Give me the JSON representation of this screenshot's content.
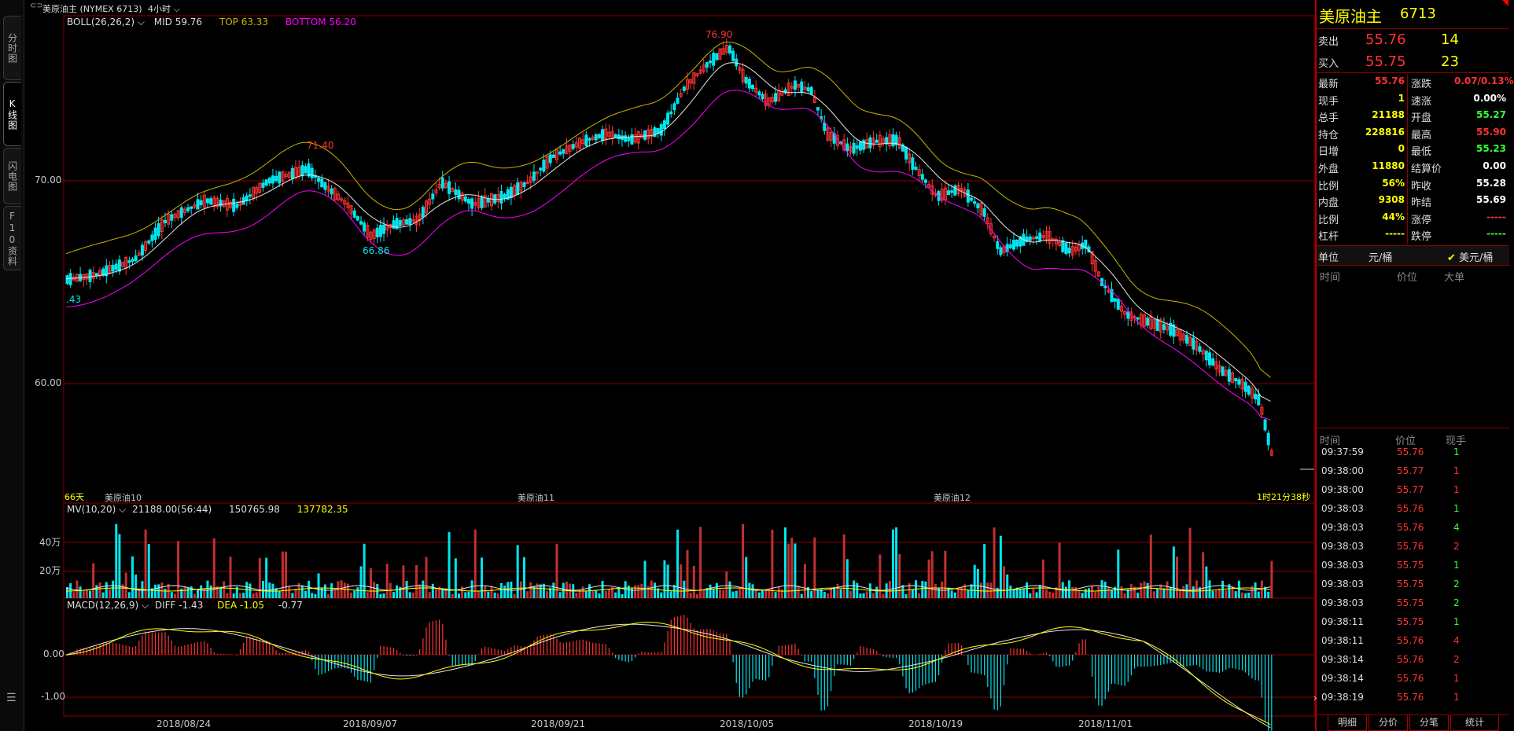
{
  "window": {
    "title": "美原油主 (NYMEX 6713)",
    "period": "4小时"
  },
  "left_tabs": [
    "分时图",
    "K线图",
    "闪电图",
    "F10资料"
  ],
  "active_tab": "K线图",
  "indicators": {
    "boll": {
      "label": "BOLL(26,26,2)",
      "mid": "MID 59.76",
      "top": "TOP 63.33",
      "bottom": "BOTTOM 56.20"
    },
    "mv": {
      "label": "MV(10,20)",
      "v1": "21188.00(56:44)",
      "v2": "150765.98",
      "v3": "137782.35"
    },
    "macd": {
      "label": "MACD(12,26,9)",
      "diff": "DIFF -1.43",
      "dea": "DEA -1.05",
      "macd": "-0.77"
    }
  },
  "price_axis": [
    "70.00",
    "60.00"
  ],
  "volume_axis": [
    "40万",
    "20万"
  ],
  "macd_axis": [
    "0.00",
    "-1.00"
  ],
  "date_axis": [
    "2018/08/24",
    "2018/09/07",
    "2018/09/21",
    "2018/10/05",
    "2018/10/19",
    "2018/11/01"
  ],
  "contract_labels": [
    "美原油10",
    "美原油11",
    "美原油12"
  ],
  "annotations": {
    "high": "76.90",
    "high2": "71.40",
    "low": "66.86",
    "left_value": ".43",
    "days": "66天",
    "countdown": "1时21分38秒"
  },
  "colors": {
    "up": "#ff3333",
    "down": "#00e5ee",
    "boll_top": "#c8b400",
    "boll_bottom": "#ff00ff",
    "mid": "#e6e6e6",
    "grid": "#8b0000"
  },
  "quote": {
    "name": "美原油主",
    "code": "6713",
    "ask_label": "卖出",
    "ask_price": "55.76",
    "ask_vol": "14",
    "bid_label": "买入",
    "bid_price": "55.75",
    "bid_vol": "23",
    "rows": [
      {
        "l1": "最新",
        "v1": "55.76",
        "c1": "#ff3333",
        "l2": "涨跌",
        "v2": "0.07/0.13%",
        "c2": "#ff3333"
      },
      {
        "l1": "现手",
        "v1": "1",
        "c1": "#ffff00",
        "l2": "速涨",
        "v2": "0.00%",
        "c2": "#ffffff"
      },
      {
        "l1": "总手",
        "v1": "21188",
        "c1": "#ffff00",
        "l2": "开盘",
        "v2": "55.27",
        "c2": "#33ff33"
      },
      {
        "l1": "持仓",
        "v1": "228816",
        "c1": "#ffff00",
        "l2": "最高",
        "v2": "55.90",
        "c2": "#ff3333"
      },
      {
        "l1": "日增",
        "v1": "0",
        "c1": "#ffff00",
        "l2": "最低",
        "v2": "55.23",
        "c2": "#33ff33"
      },
      {
        "l1": "外盘",
        "v1": "11880",
        "c1": "#ffff00",
        "l2": "结算价",
        "v2": "0.00",
        "c2": "#ffffff"
      },
      {
        "l1": "比例",
        "v1": "56%",
        "c1": "#ffff00",
        "l2": "昨收",
        "v2": "55.28",
        "c2": "#ffffff"
      },
      {
        "l1": "内盘",
        "v1": "9308",
        "c1": "#ffff00",
        "l2": "昨结",
        "v2": "55.69",
        "c2": "#ffffff"
      },
      {
        "l1": "比例",
        "v1": "44%",
        "c1": "#ffff00",
        "l2": "涨停",
        "v2": "-----",
        "c2": "#ff3333"
      },
      {
        "l1": "杠杆",
        "v1": "-----",
        "c1": "#ffff00",
        "l2": "跌停",
        "v2": "-----",
        "c2": "#33ff33"
      }
    ],
    "unit_label": "单位",
    "unit_value": "元/桶",
    "unit_option": "美元/桶",
    "big_header": [
      "时间",
      "价位",
      "大单"
    ],
    "tick_header": [
      "时间",
      "价位",
      "现手"
    ],
    "ticks": [
      {
        "t": "09:37:59",
        "p": "55.76",
        "v": "1",
        "vc": "#33ff33"
      },
      {
        "t": "09:38:00",
        "p": "55.77",
        "v": "1",
        "vc": "#ff3333"
      },
      {
        "t": "09:38:00",
        "p": "55.77",
        "v": "1",
        "vc": "#ff3333"
      },
      {
        "t": "09:38:03",
        "p": "55.76",
        "v": "1",
        "vc": "#33ff33"
      },
      {
        "t": "09:38:03",
        "p": "55.76",
        "v": "4",
        "vc": "#33ff33"
      },
      {
        "t": "09:38:03",
        "p": "55.76",
        "v": "2",
        "vc": "#ff3333"
      },
      {
        "t": "09:38:03",
        "p": "55.75",
        "v": "1",
        "vc": "#33ff33"
      },
      {
        "t": "09:38:03",
        "p": "55.75",
        "v": "2",
        "vc": "#33ff33"
      },
      {
        "t": "09:38:03",
        "p": "55.75",
        "v": "2",
        "vc": "#33ff33"
      },
      {
        "t": "09:38:11",
        "p": "55.75",
        "v": "1",
        "vc": "#33ff33"
      },
      {
        "t": "09:38:11",
        "p": "55.76",
        "v": "4",
        "vc": "#ff3333"
      },
      {
        "t": "09:38:14",
        "p": "55.76",
        "v": "2",
        "vc": "#ff3333"
      },
      {
        "t": "09:38:14",
        "p": "55.76",
        "v": "1",
        "vc": "#ff3333"
      },
      {
        "t": "09:38:19",
        "p": "55.76",
        "v": "1",
        "vc": "#ff3333"
      }
    ],
    "bottom_tabs": [
      "明细",
      "分价",
      "分笔",
      "统计"
    ]
  }
}
